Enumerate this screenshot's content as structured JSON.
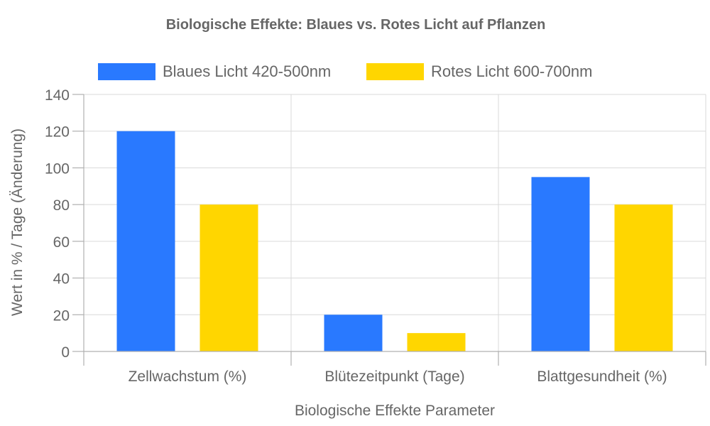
{
  "chart_data": {
    "type": "bar",
    "title": "Biologische Effekte: Blaues vs. Rotes Licht auf Pflanzen",
    "xlabel": "Biologische Effekte Parameter",
    "ylabel": "Wert in % / Tage (Änderung)",
    "categories": [
      "Zellwachstum (%)",
      "Blütezeitpunkt (Tage)",
      "Blattgesundheit (%)"
    ],
    "series": [
      {
        "name": "Blaues Licht 420-500nm",
        "color": "#2979ff",
        "values": [
          120,
          20,
          95
        ]
      },
      {
        "name": "Rotes Licht 600-700nm",
        "color": "#ffd600",
        "values": [
          80,
          10,
          80
        ]
      }
    ],
    "ylim": [
      0,
      140
    ],
    "yticks": [
      0,
      20,
      40,
      60,
      80,
      100,
      120,
      140
    ],
    "grid": true,
    "legend": "top-center"
  }
}
